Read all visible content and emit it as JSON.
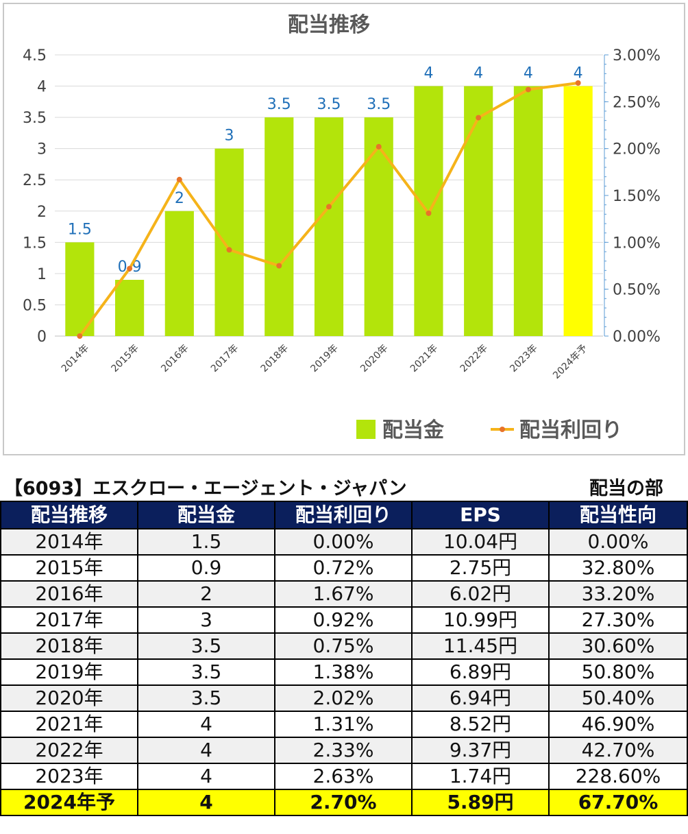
{
  "colors": {
    "bar": "#b3e40b",
    "bar_highlight": "#ffff00",
    "line": "#f5b31a",
    "marker": "#e8732a",
    "data_label": "#1f6fb8",
    "header_bg": "#0b1f5c",
    "row_grey": "#f0f0f0",
    "row_highlight": "#ffff00"
  },
  "chart_data": {
    "type": "bar",
    "title": "配当推移",
    "categories": [
      "2014年",
      "2015年",
      "2016年",
      "2017年",
      "2018年",
      "2019年",
      "2020年",
      "2021年",
      "2022年",
      "2023年",
      "2024年予"
    ],
    "series": [
      {
        "name": "配当金",
        "type": "bar",
        "axis": "left",
        "values": [
          1.5,
          0.9,
          2,
          3,
          3.5,
          3.5,
          3.5,
          4,
          4,
          4,
          4
        ],
        "labels": [
          "1.5",
          "0.9",
          "2",
          "3",
          "3.5",
          "3.5",
          "3.5",
          "4",
          "4",
          "4",
          "4"
        ],
        "highlight_index": 10
      },
      {
        "name": "配当利回り",
        "type": "line",
        "axis": "right",
        "values": [
          0.0,
          0.72,
          1.67,
          0.92,
          0.75,
          1.38,
          2.02,
          1.31,
          2.33,
          2.63,
          2.7
        ]
      }
    ],
    "ylim": [
      0,
      4.5
    ],
    "yticks": [
      "0",
      "0.5",
      "1",
      "1.5",
      "2",
      "2.5",
      "3",
      "3.5",
      "4",
      "4.5"
    ],
    "ylim_right": [
      0,
      3.0
    ],
    "yticks_right": [
      "0.00%",
      "0.50%",
      "1.00%",
      "1.50%",
      "2.00%",
      "2.50%",
      "3.00%"
    ],
    "grid": true,
    "legend_position": "bottom-right"
  },
  "table": {
    "title": "【6093】エスクロー・エージェント・ジャパン",
    "section_label": "配当の部",
    "headers": [
      "配当推移",
      "配当金",
      "配当利回り",
      "EPS",
      "配当性向"
    ],
    "rows": [
      [
        "2014年",
        "1.5",
        "0.00%",
        "10.04円",
        "0.00%"
      ],
      [
        "2015年",
        "0.9",
        "0.72%",
        "2.75円",
        "32.80%"
      ],
      [
        "2016年",
        "2",
        "1.67%",
        "6.02円",
        "33.20%"
      ],
      [
        "2017年",
        "3",
        "0.92%",
        "10.99円",
        "27.30%"
      ],
      [
        "2018年",
        "3.5",
        "0.75%",
        "11.45円",
        "30.60%"
      ],
      [
        "2019年",
        "3.5",
        "1.38%",
        "6.89円",
        "50.80%"
      ],
      [
        "2020年",
        "3.5",
        "2.02%",
        "6.94円",
        "50.40%"
      ],
      [
        "2021年",
        "4",
        "1.31%",
        "8.52円",
        "46.90%"
      ],
      [
        "2022年",
        "4",
        "2.33%",
        "9.37円",
        "42.70%"
      ],
      [
        "2023年",
        "4",
        "2.63%",
        "1.74円",
        "228.60%"
      ],
      [
        "2024年予",
        "4",
        "2.70%",
        "5.89円",
        "67.70%"
      ]
    ]
  }
}
